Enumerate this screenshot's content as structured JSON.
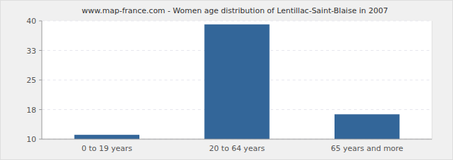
{
  "chart_data": {
    "type": "bar",
    "title": "www.map-france.com - Women age distribution of Lentillac-Saint-Blaise in 2007",
    "categories": [
      "0 to 19 years",
      "20 to 64 years",
      "65 years and more"
    ],
    "values": [
      11.1,
      39.1,
      16.3
    ],
    "color": "#336699",
    "ylim": [
      10,
      40
    ],
    "yticks": [
      10,
      {
        "value": 17.5,
        "label": "18"
      },
      25,
      {
        "value": 32.5,
        "label": "33"
      },
      40
    ],
    "grid": true
  }
}
